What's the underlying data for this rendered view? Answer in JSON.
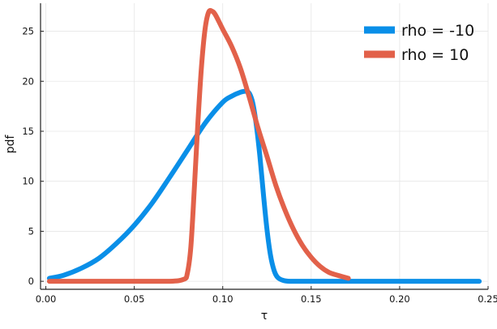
{
  "chart_data": {
    "type": "line",
    "xlabel": "τ",
    "ylabel": "pdf",
    "xlim": [
      -0.003,
      0.25
    ],
    "ylim": [
      -0.8,
      27.8
    ],
    "xticks": [
      0.0,
      0.05,
      0.1,
      0.15,
      0.2,
      0.25
    ],
    "xtick_labels": [
      "0.00",
      "0.05",
      "0.10",
      "0.15",
      "0.20",
      "0.25"
    ],
    "yticks": [
      0,
      5,
      10,
      15,
      20,
      25
    ],
    "ytick_labels": [
      "0",
      "5",
      "10",
      "15",
      "20",
      "25"
    ],
    "grid": true,
    "legend_position": "top-right",
    "series": [
      {
        "name": "rho = -10",
        "color": "#0a8fe8",
        "x": [
          0.002,
          0.01,
          0.02,
          0.03,
          0.04,
          0.05,
          0.06,
          0.07,
          0.08,
          0.09,
          0.1,
          0.105,
          0.11,
          0.113,
          0.115,
          0.117,
          0.119,
          0.121,
          0.123,
          0.125,
          0.127,
          0.129,
          0.131,
          0.134,
          0.138,
          0.15,
          0.2,
          0.245
        ],
        "y": [
          0.3,
          0.6,
          1.3,
          2.3,
          3.8,
          5.6,
          7.8,
          10.4,
          13.1,
          15.8,
          17.9,
          18.5,
          18.9,
          19.0,
          18.8,
          17.8,
          15.6,
          12.5,
          8.7,
          5.2,
          2.6,
          1.1,
          0.4,
          0.1,
          0.0,
          0.0,
          0.0,
          0.0
        ]
      },
      {
        "name": "rho = 10",
        "color": "#e2614a",
        "x": [
          0.002,
          0.05,
          0.07,
          0.078,
          0.08,
          0.082,
          0.084,
          0.086,
          0.088,
          0.09,
          0.092,
          0.094,
          0.096,
          0.1,
          0.105,
          0.11,
          0.115,
          0.12,
          0.125,
          0.13,
          0.135,
          0.14,
          0.145,
          0.15,
          0.155,
          0.16,
          0.165,
          0.171
        ],
        "y": [
          0.0,
          0.0,
          0.0,
          0.2,
          0.8,
          3.5,
          9.5,
          16.0,
          21.5,
          25.2,
          26.9,
          27.0,
          26.6,
          25.2,
          23.5,
          21.3,
          18.4,
          15.3,
          12.5,
          9.6,
          7.2,
          5.2,
          3.6,
          2.4,
          1.5,
          0.9,
          0.6,
          0.3
        ]
      }
    ]
  }
}
